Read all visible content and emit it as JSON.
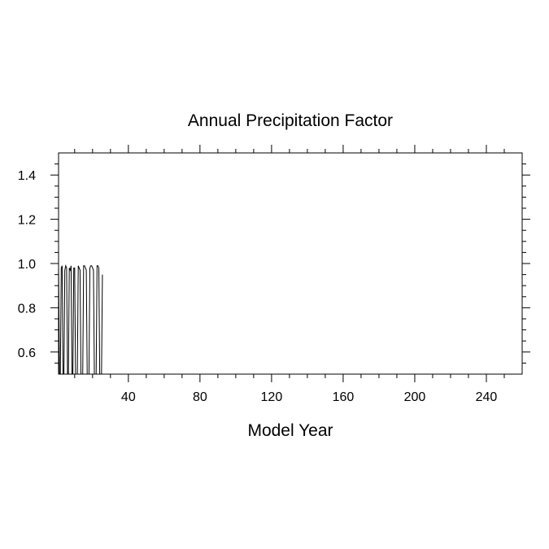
{
  "chart_data": {
    "type": "line",
    "title": "Annual Precipitation Factor",
    "xlabel": "Model Year",
    "ylabel": "",
    "xlim": [
      1,
      260
    ],
    "ylim": [
      0.5,
      1.5
    ],
    "xticks": [
      40,
      80,
      120,
      160,
      200,
      240
    ],
    "xtick_labels": [
      "40",
      "80",
      "120",
      "160",
      "200",
      "240"
    ],
    "yticks": [
      0.6,
      0.8,
      1.0,
      1.2,
      1.4
    ],
    "ytick_labels": [
      "0.6",
      "0.8",
      "1.0",
      "1.2",
      "1.4"
    ],
    "grid": false,
    "line_color": "#000000",
    "series": [
      {
        "x": [
          1,
          1.5,
          2,
          2.5,
          3,
          3.5,
          4,
          4.5,
          5,
          5.5,
          6,
          6.5,
          7,
          7.5,
          8,
          8.5,
          9,
          9.5,
          10,
          10.5,
          11,
          11.5,
          12,
          12.5,
          13,
          13.5,
          14,
          14.5,
          15,
          15.5,
          16,
          16.5,
          17,
          17.5,
          18,
          18.5,
          19,
          19.5,
          20,
          20.5,
          21,
          21.5,
          22,
          22.5,
          23,
          23.5,
          24,
          24.5,
          25,
          25.5
        ],
        "y": [
          0.99,
          0.5,
          0.5,
          0.98,
          0.99,
          0.5,
          0.5,
          0.97,
          0.99,
          0.98,
          0.5,
          0.5,
          0.98,
          0.97,
          0.99,
          0.5,
          0.5,
          0.98,
          0.98,
          0.5,
          0.5,
          0.5,
          0.99,
          0.98,
          0.97,
          0.5,
          0.5,
          0.5,
          0.99,
          0.99,
          0.98,
          0.97,
          0.5,
          0.5,
          0.5,
          0.98,
          0.99,
          0.99,
          0.98,
          0.97,
          0.5,
          0.5,
          0.5,
          0.99,
          0.99,
          0.98,
          0.5,
          0.5,
          0.5,
          0.95
        ]
      }
    ]
  }
}
